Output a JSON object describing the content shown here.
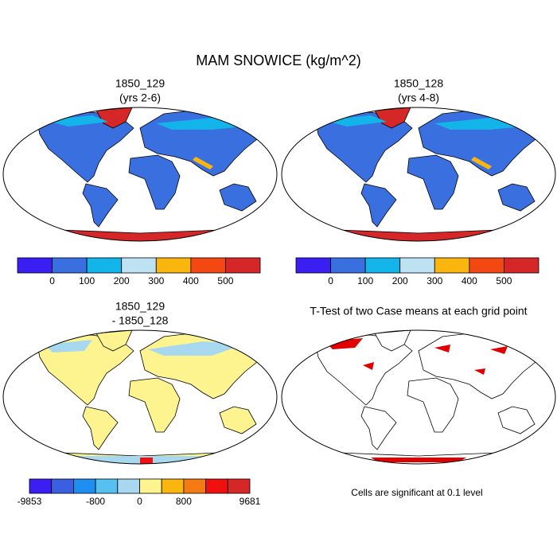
{
  "title": "MAM SNOWICE (kg/m^2)",
  "panels": [
    {
      "title": "1850_129",
      "subtitle": "(yrs 2-6)",
      "colorbar": {
        "colors": [
          "#3b1ff2",
          "#3a6fe0",
          "#12b4ea",
          "#bde3f2",
          "#fbb50f",
          "#f44813",
          "#d62728"
        ],
        "labels": [
          "0",
          "100",
          "200",
          "300",
          "400",
          "500"
        ]
      }
    },
    {
      "title": "1850_128",
      "subtitle": "(yrs 4-8)",
      "colorbar": {
        "colors": [
          "#3b1ff2",
          "#3a6fe0",
          "#12b4ea",
          "#bde3f2",
          "#fbb50f",
          "#f44813",
          "#d62728"
        ],
        "labels": [
          "0",
          "100",
          "200",
          "300",
          "400",
          "500"
        ]
      }
    },
    {
      "title": "1850_129",
      "subtitle": "- 1850_128",
      "colorbar": {
        "colors": [
          "#3b1ff2",
          "#3a5fe0",
          "#1e8ef0",
          "#56c0f0",
          "#a8d8f0",
          "#fdf38f",
          "#fbb50f",
          "#f47a13",
          "#f01010",
          "#d62728"
        ],
        "labels": [
          "-9853",
          "-800",
          "0",
          "800",
          "9681"
        ]
      }
    },
    {
      "title": "T-Test of two Case means at each grid point",
      "note": "Cells are significant at 0.1 level"
    }
  ]
}
